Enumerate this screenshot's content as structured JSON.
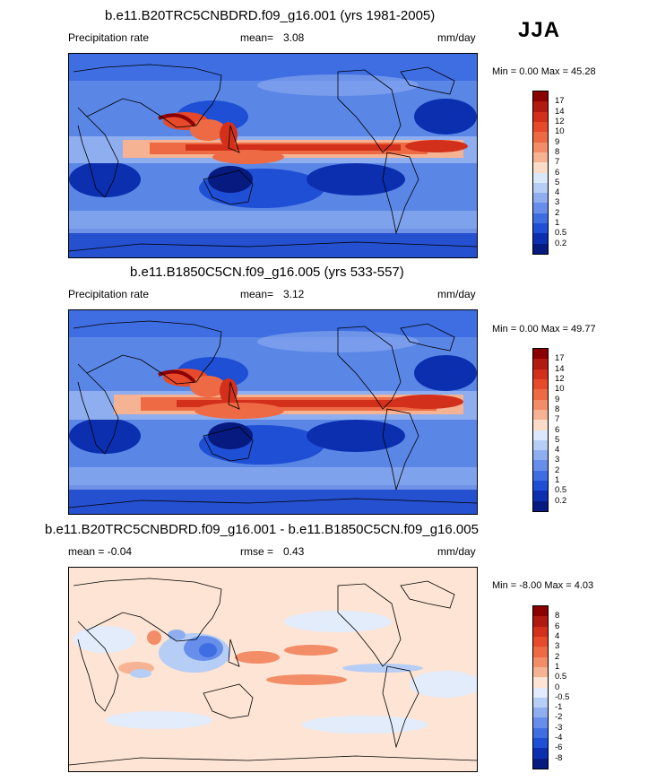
{
  "season": "JJA",
  "units": "mm/day",
  "panels": [
    {
      "title": "b.e11.B20TRC5CNBDRD.f09_g16.001 (yrs 1981-2005)",
      "left_label": "Precipitation rate",
      "stat_label": "mean=",
      "stat_value": "3.08",
      "range_text": "Min =   0.00 Max =  45.28",
      "colorbar": {
        "labels": [
          "17",
          "14",
          "12",
          "10",
          "9",
          "8",
          "7",
          "6",
          "5",
          "4",
          "3",
          "2",
          "1",
          "0.5",
          "0.2"
        ],
        "colors": [
          "#8b0000",
          "#b2190f",
          "#d2301b",
          "#e64a2a",
          "#ee6a45",
          "#f28d67",
          "#f6b393",
          "#fbdcc8",
          "#dbe7fb",
          "#b6cdf6",
          "#8eaef0",
          "#668eea",
          "#3f6ee2",
          "#1f4fd4",
          "#0c2fb0",
          "#061a80"
        ]
      }
    },
    {
      "title": "b.e11.B1850C5CN.f09_g16.005 (yrs 533-557)",
      "left_label": "Precipitation rate",
      "stat_label": "mean=",
      "stat_value": "3.12",
      "range_text": "Min =   0.00 Max =  49.77",
      "colorbar": {
        "labels": [
          "17",
          "14",
          "12",
          "10",
          "9",
          "8",
          "7",
          "6",
          "5",
          "4",
          "3",
          "2",
          "1",
          "0.5",
          "0.2"
        ],
        "colors": [
          "#8b0000",
          "#b2190f",
          "#d2301b",
          "#e64a2a",
          "#ee6a45",
          "#f28d67",
          "#f6b393",
          "#fbdcc8",
          "#dbe7fb",
          "#b6cdf6",
          "#8eaef0",
          "#668eea",
          "#3f6ee2",
          "#1f4fd4",
          "#0c2fb0",
          "#061a80"
        ]
      }
    },
    {
      "title": "b.e11.B20TRC5CNBDRD.f09_g16.001 - b.e11.B1850C5CN.f09_g16.005",
      "left_label": "mean =  -0.04",
      "stat_label": "rmse =",
      "stat_value": "0.43",
      "range_text": "Min =  -8.00 Max =   4.03",
      "colorbar": {
        "labels": [
          "8",
          "6",
          "4",
          "3",
          "2",
          "1",
          "0.5",
          "0",
          "-0.5",
          "-1",
          "-2",
          "-3",
          "-4",
          "-6",
          "-8"
        ],
        "colors": [
          "#8b0000",
          "#b2190f",
          "#d2301b",
          "#e64a2a",
          "#ee6a45",
          "#f28d67",
          "#f6b393",
          "#fde4d4",
          "#e2ecfb",
          "#b6cdf6",
          "#8eaef0",
          "#668eea",
          "#3f6ee2",
          "#1f4fd4",
          "#0c2fb0",
          "#061a80"
        ]
      }
    }
  ]
}
